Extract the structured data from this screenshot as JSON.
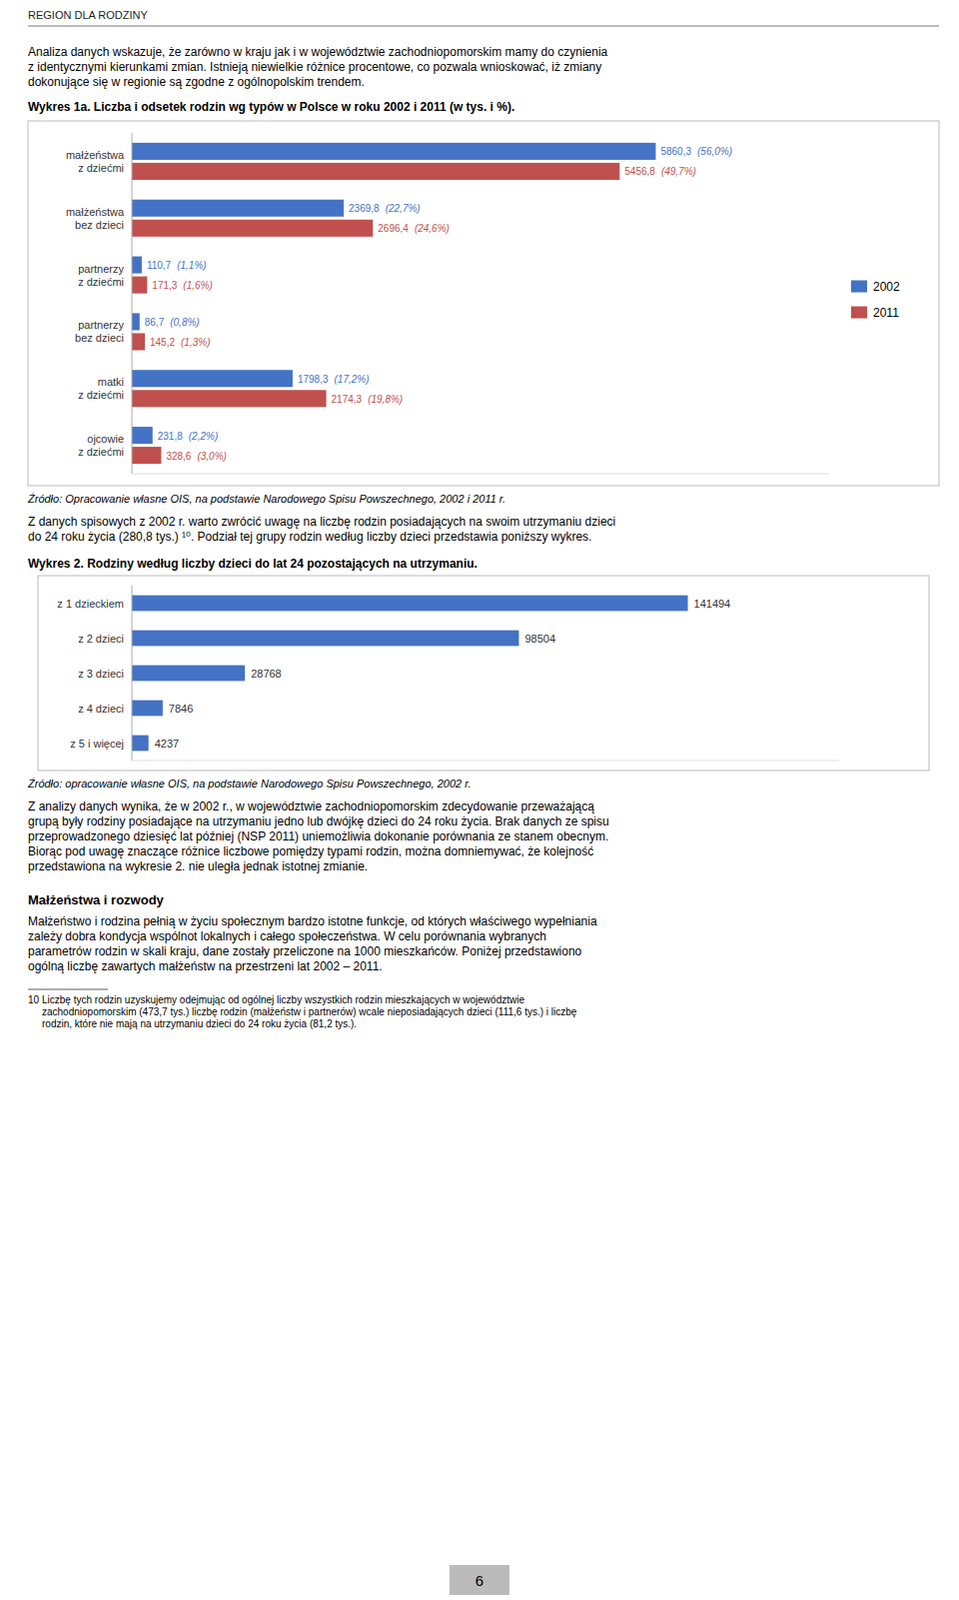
{
  "header": "REGION DLA RODZINY",
  "intro": [
    "Analiza danych wskazuje, że zarówno w kraju jak i w województwie zachodniopomorskim mamy do czynienia",
    "z identycznymi kierunkami zmian. Istnieją niewielkie różnice procentowe, co pozwala wnioskować, iż zmiany",
    "dokonujące się w regionie są zgodne z ogólnopolskim trendem."
  ],
  "middle": [
    "Z danych spisowych z 2002 r. warto zwrócić uwagę na liczbę rodzin posiadających na swoim utrzymaniu dzieci",
    "do 24 roku życia (280,8 tys.) ¹⁰. Podział tej grupy rodzin według liczby dzieci przedstawia poniższy wykres."
  ],
  "after_charts": [
    "Z analizy danych wynika, że w 2002 r., w województwie zachodniopomorskim zdecydowanie przeważającą",
    "grupą były rodziny posiadające na utrzymaniu jedno lub dwójkę dzieci do 24 roku życia. Brak danych ze spisu",
    "przeprowadzonego dziesięć lat później (NSP 2011) uniemożliwia dokonanie porównania ze stanem obecnym.",
    "Biorąc pod uwagę znaczące różnice liczbowe pomiędzy typami rodzin, można domniemywać, że kolejność",
    "przedstawiona na wykresie 2. nie uległa jednak istotnej zmianie."
  ],
  "section": "Małżeństwa i rozwody",
  "closing": [
    "Małżeństwo i rodzina pełnią w życiu społecznym bardzo istotne funkcje, od których właściwego wypełniania",
    "zależy dobra kondycja wspólnot lokalnych i całego społeczeństwa. W celu porównania wybranych",
    "parametrów rodzin w skali kraju, dane zostały przeliczone na 1000 mieszkańców. Poniżej przedstawiono",
    "ogólną liczbę zawartych małżeństw na przestrzeni lat 2002 – 2011."
  ],
  "footnote": {
    "number": "10",
    "lines": [
      "Liczbę tych rodzin uzyskujemy odejmując od ogólnej liczby wszystkich rodzin mieszkających w województwie",
      "zachodniopomorskim (473,7 tys.) liczbę rodzin (małżeństw i partnerów) wcale nieposiadających dzieci (111,6 tys.) i liczbę",
      "rodzin, które nie mają na utrzymaniu dzieci do 24 roku życia (81,2 tys.)."
    ]
  },
  "page_number": "6",
  "chart_data": [
    {
      "type": "bar",
      "orientation": "horizontal",
      "title": "Wykres 1a. Liczba i odsetek rodzin wg typów w Polsce w roku 2002 i 2011 (w tys. i %).",
      "source": "Źródło: Opracowanie własne OIS, na podstawie Narodowego Spisu Powszechnego, 2002 i 2011 r.",
      "categories": [
        "małżeństwa\nz dziećmi",
        "małżeństwa\nbez dzieci",
        "partnerzy\nz dziećmi",
        "partnerzy\nbez dzieci",
        "matki\nz dziećmi",
        "ojcowie\nz dziećmi"
      ],
      "series": [
        {
          "name": "2002",
          "color": "#4472C4",
          "values": [
            5860.3,
            2369.8,
            110.7,
            86.7,
            1798.3,
            231.8
          ],
          "value_labels": [
            "5860,3",
            "2369,8",
            "110,7",
            "86,7",
            "1798,3",
            "231,8"
          ],
          "share_labels": [
            "(56,0%)",
            "(22,7%)",
            "(1,1%)",
            "(0,8%)",
            "(17,2%)",
            "(2,2%)"
          ]
        },
        {
          "name": "2011",
          "color": "#C0504D",
          "values": [
            5456.8,
            2696.4,
            171.3,
            145.2,
            2174.3,
            328.6
          ],
          "value_labels": [
            "5456,8",
            "2696,4",
            "171,3",
            "145,2",
            "2174,3",
            "328,6"
          ],
          "share_labels": [
            "(49,7%)",
            "(24,6%)",
            "(1,6%)",
            "(1,3%)",
            "(19,8%)",
            "(3,0%)"
          ]
        }
      ],
      "xlim": [
        0,
        7800
      ],
      "tick_labels": "y",
      "data_labels": true,
      "grid": false,
      "legend": "right"
    },
    {
      "type": "bar",
      "orientation": "horizontal",
      "title": "Wykres 2. Rodziny według liczby dzieci do lat 24 pozostających na utrzymaniu.",
      "source": "Źródło: opracowanie własne OIS, na podstawie Narodowego Spisu Powszechnego, 2002 r.",
      "categories": [
        "z 1 dzieckiem",
        "z 2 dzieci",
        "z 3 dzieci",
        "z 4 dzieci",
        "z 5 i więcej"
      ],
      "values": [
        141494,
        98504,
        28768,
        7846,
        4237
      ],
      "color": "#4472C4",
      "xlim": [
        0,
        180000
      ],
      "tick_labels": "y",
      "data_labels": true,
      "grid": false
    }
  ]
}
